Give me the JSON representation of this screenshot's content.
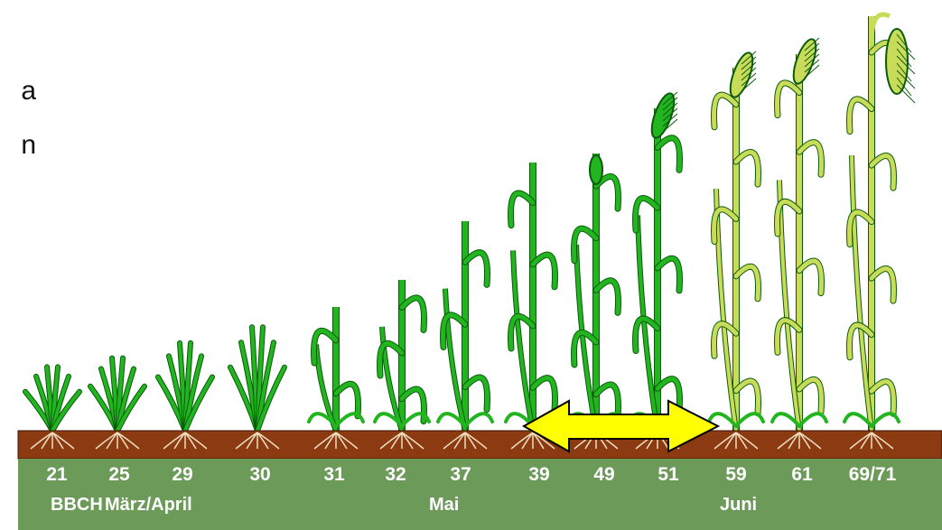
{
  "cut_text": [
    "a",
    "n"
  ],
  "stages": [
    "21",
    "25",
    "29",
    "30",
    "31",
    "32",
    "37",
    "39",
    "49",
    "51",
    "59",
    "61",
    "69/71"
  ],
  "scale_label": "BBCH",
  "months": [
    "März/April",
    "Mai",
    "Juni"
  ],
  "colors": {
    "band": "#6b9a59",
    "soil": "#8b3a12",
    "green_plant": "#22b520",
    "yellow_plant": "#c9dc5a",
    "arrow": "#ffff00"
  }
}
